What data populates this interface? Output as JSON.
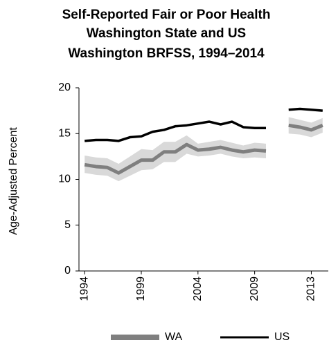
{
  "chart_data": {
    "type": "line",
    "title": [
      "Self-Reported Fair or Poor Health",
      "Washington State and US",
      "Washington BRFSS, 1994–2014"
    ],
    "y_label": "Age-Adjusted Percent",
    "categories": [
      "1994",
      null,
      null,
      null,
      null,
      "1999",
      null,
      null,
      null,
      null,
      "2004",
      null,
      null,
      null,
      null,
      "2009",
      null,
      null,
      null,
      null,
      "2013",
      null
    ],
    "series": [
      {
        "name": "WA",
        "color": "#7f7f7f",
        "band_color": "#d9d9d9",
        "values": [
          11.6,
          11.4,
          11.3,
          10.7,
          11.4,
          12.1,
          12.1,
          13.0,
          13.0,
          13.8,
          13.2,
          13.3,
          13.5,
          13.2,
          13.0,
          13.2,
          13.1,
          null,
          15.9,
          15.7,
          15.4,
          15.9
        ],
        "lower": [
          10.7,
          10.5,
          10.4,
          9.8,
          10.4,
          11.0,
          11.1,
          11.9,
          11.9,
          12.8,
          12.5,
          12.6,
          12.8,
          12.5,
          12.3,
          12.4,
          12.3,
          null,
          15.0,
          14.9,
          14.6,
          15.1
        ],
        "upper": [
          12.6,
          12.4,
          12.3,
          11.7,
          12.5,
          13.3,
          13.2,
          14.1,
          14.1,
          14.8,
          13.9,
          14.1,
          14.3,
          14.0,
          13.7,
          14.0,
          13.9,
          null,
          16.8,
          16.5,
          16.2,
          16.7
        ]
      },
      {
        "name": "US",
        "color": "#000000",
        "values": [
          14.2,
          14.3,
          14.3,
          14.2,
          14.6,
          14.7,
          15.2,
          15.4,
          15.8,
          15.9,
          16.1,
          16.3,
          16.0,
          16.3,
          15.7,
          15.6,
          15.6,
          null,
          17.6,
          17.7,
          17.6,
          17.5
        ]
      }
    ],
    "ylim": [
      0,
      20
    ],
    "yticks": [
      0,
      5,
      10,
      15,
      20
    ]
  }
}
